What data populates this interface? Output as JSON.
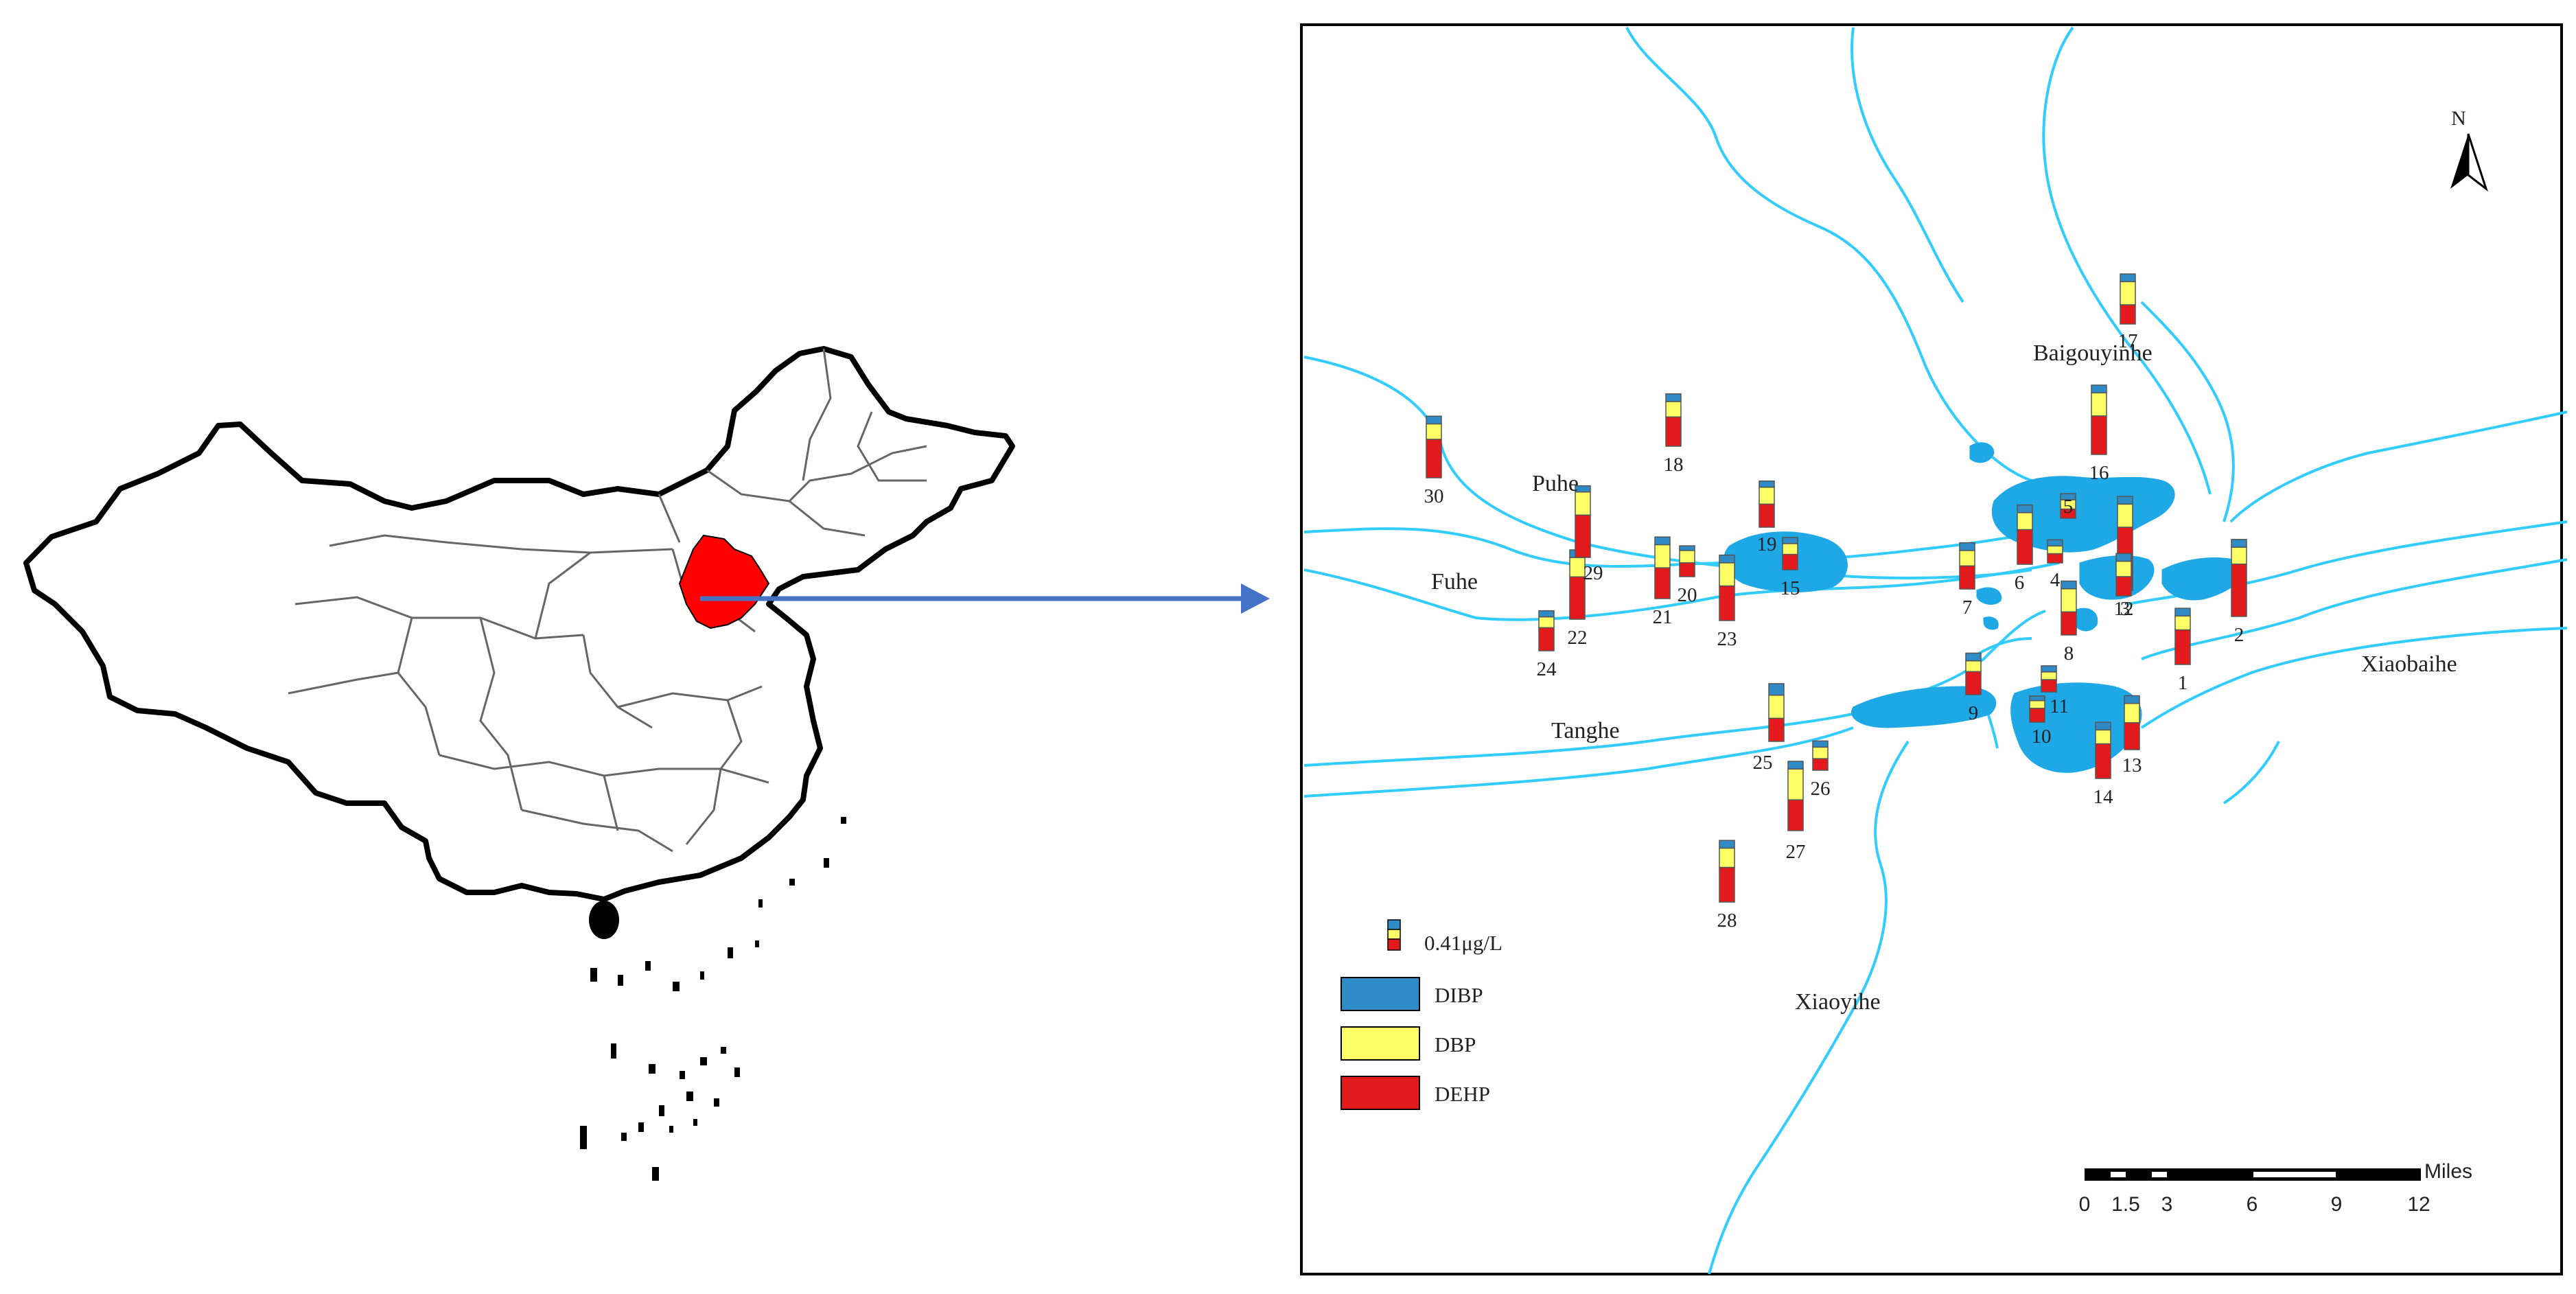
{
  "colors": {
    "DIBP": "#2e8bc6",
    "DBP": "#ffff66",
    "DEHP": "#e31a1c",
    "river": "#33ccff",
    "lake": "#1fa8e6",
    "highlight_province": "#ff0000",
    "arrow": "#4472c4"
  },
  "icons": {
    "north_arrow": "north-arrow-icon"
  },
  "map": {
    "north_label": "N",
    "rivers": [
      {
        "id": "baigouyinhe",
        "name": "Baigouyinhe"
      },
      {
        "id": "puhe",
        "name": "Puhe"
      },
      {
        "id": "fuhe",
        "name": "Fuhe"
      },
      {
        "id": "tanghe",
        "name": "Tanghe"
      },
      {
        "id": "xiaobaihe",
        "name": "Xiaobaihe"
      },
      {
        "id": "xiaoyihe",
        "name": "Xiaoyihe"
      }
    ],
    "sites": [
      {
        "id": "1",
        "DIBP": 0.1,
        "DBP": 0.18,
        "DEHP": 0.45
      },
      {
        "id": "2",
        "DIBP": 0.1,
        "DBP": 0.22,
        "DEHP": 0.68
      },
      {
        "id": "3",
        "DIBP": 0.1,
        "DBP": 0.3,
        "DEHP": 0.82
      },
      {
        "id": "4",
        "DIBP": 0.08,
        "DBP": 0.1,
        "DEHP": 0.12
      },
      {
        "id": "5",
        "DIBP": 0.08,
        "DBP": 0.12,
        "DEHP": 0.12
      },
      {
        "id": "6",
        "DIBP": 0.1,
        "DBP": 0.22,
        "DEHP": 0.45
      },
      {
        "id": "7",
        "DIBP": 0.1,
        "DBP": 0.2,
        "DEHP": 0.3
      },
      {
        "id": "8",
        "DIBP": 0.1,
        "DBP": 0.3,
        "DEHP": 0.3
      },
      {
        "id": "9",
        "DIBP": 0.1,
        "DBP": 0.14,
        "DEHP": 0.3
      },
      {
        "id": "10",
        "DIBP": 0.06,
        "DBP": 0.1,
        "DEHP": 0.18
      },
      {
        "id": "11",
        "DIBP": 0.08,
        "DBP": 0.1,
        "DEHP": 0.16
      },
      {
        "id": "12",
        "DIBP": 0.1,
        "DBP": 0.2,
        "DEHP": 0.25
      },
      {
        "id": "13",
        "DIBP": 0.1,
        "DBP": 0.25,
        "DEHP": 0.35
      },
      {
        "id": "14",
        "DIBP": 0.1,
        "DBP": 0.18,
        "DEHP": 0.45
      },
      {
        "id": "15",
        "DIBP": 0.08,
        "DBP": 0.14,
        "DEHP": 0.2
      },
      {
        "id": "16",
        "DIBP": 0.1,
        "DBP": 0.3,
        "DEHP": 0.5
      },
      {
        "id": "17",
        "DIBP": 0.1,
        "DBP": 0.3,
        "DEHP": 0.25
      },
      {
        "id": "18",
        "DIBP": 0.1,
        "DBP": 0.2,
        "DEHP": 0.38
      },
      {
        "id": "19",
        "DIBP": 0.08,
        "DBP": 0.22,
        "DEHP": 0.3
      },
      {
        "id": "20",
        "DIBP": 0.06,
        "DBP": 0.16,
        "DEHP": 0.18
      },
      {
        "id": "21",
        "DIBP": 0.1,
        "DBP": 0.3,
        "DEHP": 0.4
      },
      {
        "id": "22",
        "DIBP": 0.1,
        "DBP": 0.25,
        "DEHP": 0.55
      },
      {
        "id": "23",
        "DIBP": 0.1,
        "DBP": 0.3,
        "DEHP": 0.45
      },
      {
        "id": "24",
        "DIBP": 0.08,
        "DBP": 0.14,
        "DEHP": 0.3
      },
      {
        "id": "25",
        "DIBP": 0.15,
        "DBP": 0.3,
        "DEHP": 0.3
      },
      {
        "id": "26",
        "DIBP": 0.08,
        "DBP": 0.15,
        "DEHP": 0.15
      },
      {
        "id": "27",
        "DIBP": 0.1,
        "DBP": 0.4,
        "DEHP": 0.4
      },
      {
        "id": "28",
        "DIBP": 0.1,
        "DBP": 0.25,
        "DEHP": 0.45
      },
      {
        "id": "29",
        "DIBP": 0.08,
        "DBP": 0.3,
        "DEHP": 0.55
      },
      {
        "id": "30",
        "DIBP": 0.1,
        "DBP": 0.2,
        "DEHP": 0.5
      }
    ]
  },
  "legend": {
    "reference_label": "0.41μg/L",
    "reference_value": 0.41,
    "items": [
      {
        "key": "DIBP",
        "label": "DIBP"
      },
      {
        "key": "DBP",
        "label": "DBP"
      },
      {
        "key": "DEHP",
        "label": "DEHP"
      }
    ]
  },
  "scale_bar": {
    "unit": "Miles",
    "ticks": [
      "0",
      "1.5",
      "3",
      "6",
      "9",
      "12"
    ]
  }
}
